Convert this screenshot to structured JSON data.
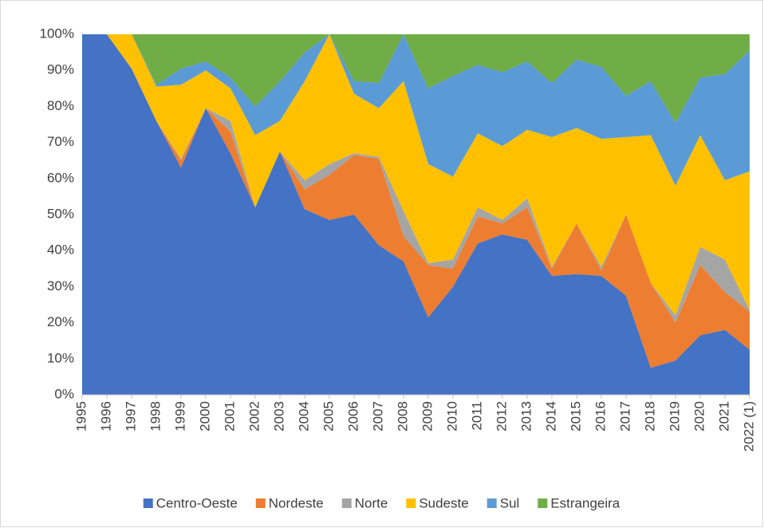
{
  "chart_data": {
    "type": "area",
    "stacked": true,
    "categories": [
      "1995",
      "1996",
      "1997",
      "1998",
      "1999",
      "2000",
      "2001",
      "2002",
      "2003",
      "2004",
      "2005",
      "2006",
      "2007",
      "2008",
      "2009",
      "2010",
      "2011",
      "2012",
      "2013",
      "2014",
      "2015",
      "2016",
      "2017",
      "2018",
      "2019",
      "2020",
      "2021",
      "2022 (1)"
    ],
    "series": [
      {
        "name": "Centro-Oeste",
        "color": "#4472c4",
        "values": [
          100,
          100,
          90.5,
          76,
          63,
          79.5,
          67,
          52,
          67.5,
          51.5,
          48.5,
          50,
          41.5,
          37,
          21.5,
          30,
          42,
          44.5,
          43,
          33,
          33.5,
          33,
          27.5,
          7.5,
          9.5,
          16.5,
          18,
          12.5
        ]
      },
      {
        "name": "Nordeste",
        "color": "#ed7d31",
        "values": [
          0,
          0,
          0,
          0,
          2,
          0,
          6,
          0,
          0,
          5.5,
          12.5,
          16.5,
          24,
          7,
          14.5,
          5,
          7.5,
          3,
          9,
          2,
          14,
          1.5,
          22.5,
          23.5,
          10.5,
          19.5,
          10.5,
          10.5
        ]
      },
      {
        "name": "Norte",
        "color": "#a5a5a5",
        "values": [
          0,
          0,
          0,
          0,
          0.5,
          0,
          3,
          0,
          0,
          2.5,
          3,
          0.5,
          0.5,
          7,
          0.5,
          2.5,
          2.5,
          1,
          2.5,
          0.5,
          0,
          1,
          0,
          0,
          2,
          5,
          9,
          0.5
        ]
      },
      {
        "name": "Sudeste",
        "color": "#ffc000",
        "values": [
          0,
          0,
          9.5,
          9.5,
          20.5,
          10.5,
          9,
          20,
          8.5,
          27.5,
          36,
          16.5,
          13.5,
          36,
          27.5,
          23,
          20.5,
          20.5,
          19,
          36,
          26.5,
          35.5,
          21.5,
          41,
          36,
          31,
          22,
          38.5
        ]
      },
      {
        "name": "Sul",
        "color": "#5b9bd5",
        "values": [
          0,
          0,
          0,
          0.5,
          4.5,
          2.5,
          3,
          8,
          11,
          8,
          0,
          3.5,
          7,
          13,
          21,
          28,
          19,
          20.5,
          19,
          15,
          19,
          20,
          11.5,
          15,
          17.5,
          16,
          29.5,
          33.5
        ]
      },
      {
        "name": "Estrangeira",
        "color": "#70ad47",
        "values": [
          0,
          0,
          0,
          14,
          9.5,
          7.5,
          12,
          20,
          13,
          5,
          0,
          13,
          13.5,
          0,
          15,
          11.5,
          8.5,
          10.5,
          7.5,
          13.5,
          7,
          9,
          17,
          13,
          24.5,
          12,
          11,
          4.5
        ]
      }
    ],
    "ylim": [
      0,
      100
    ],
    "yticks": [
      {
        "value": 0,
        "label": "0%"
      },
      {
        "value": 10,
        "label": "10%"
      },
      {
        "value": 20,
        "label": "20%"
      },
      {
        "value": 30,
        "label": "30%"
      },
      {
        "value": 40,
        "label": "40%"
      },
      {
        "value": 50,
        "label": "50%"
      },
      {
        "value": 60,
        "label": "60%"
      },
      {
        "value": 70,
        "label": "70%"
      },
      {
        "value": 80,
        "label": "80%"
      },
      {
        "value": 90,
        "label": "90%"
      },
      {
        "value": 100,
        "label": "100%"
      }
    ],
    "grid": false,
    "legend": "bottom"
  }
}
